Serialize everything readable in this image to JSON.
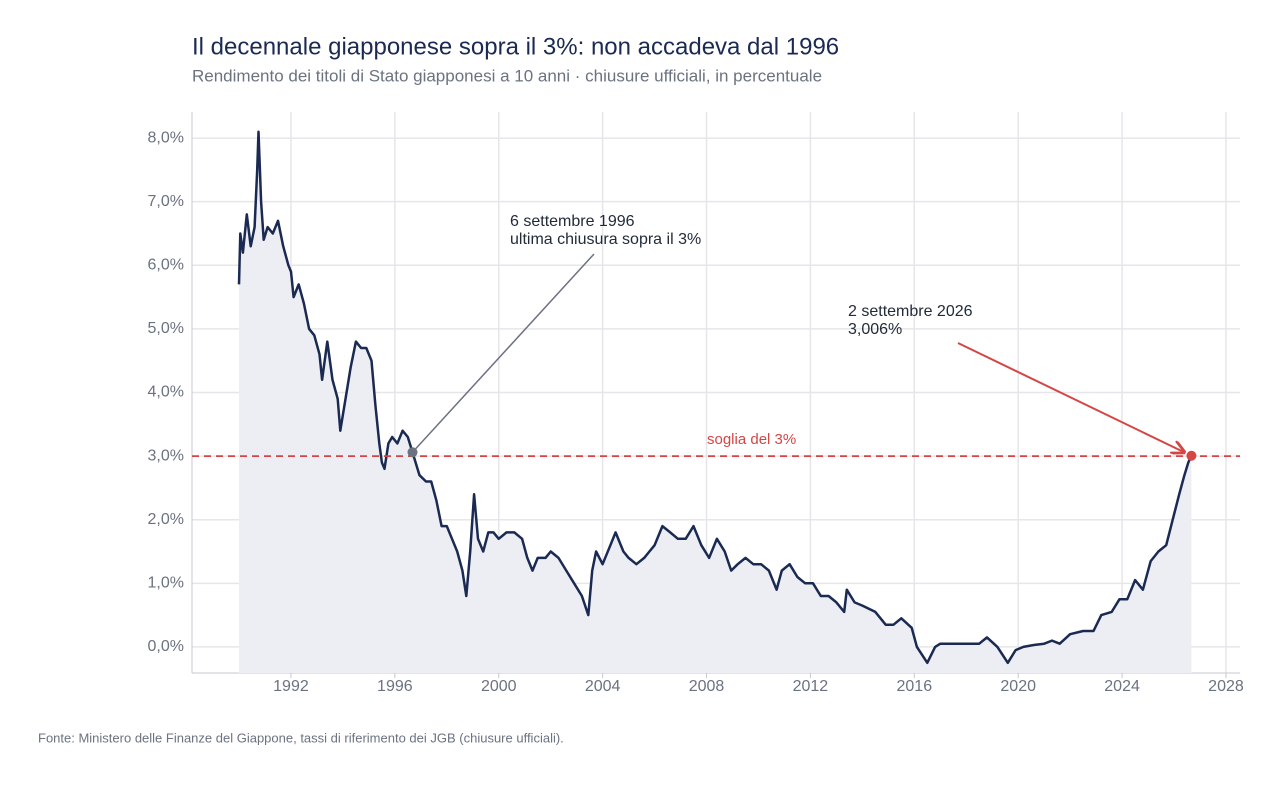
{
  "chart_data": {
    "type": "line",
    "title": "Il decennale giapponese sopra il 3%: non accadeva dal 1996",
    "subtitle": "Rendimento dei titoli di Stato giapponesi a 10 anni · chiusure ufficiali, in percentuale",
    "source": "Fonte: Ministero delle Finanze del Giappone, tassi di riferimento dei JGB (chiusure ufficiali).",
    "xlim": [
      1988.19,
      2028.54
    ],
    "ylim": [
      -0.41,
      8.41
    ],
    "xticks": [
      1992,
      1996,
      2000,
      2004,
      2008,
      2012,
      2016,
      2020,
      2024,
      2028
    ],
    "yticks": [
      {
        "value": 0,
        "label": "0,0%"
      },
      {
        "value": 1,
        "label": "1,0%"
      },
      {
        "value": 2,
        "label": "2,0%"
      },
      {
        "value": 3,
        "label": "3,0%"
      },
      {
        "value": 4,
        "label": "4,0%"
      },
      {
        "value": 5,
        "label": "5,0%"
      },
      {
        "value": 6,
        "label": "6,0%"
      },
      {
        "value": 7,
        "label": "7,0%"
      },
      {
        "value": 8,
        "label": "8,0%"
      }
    ],
    "grid": true,
    "x": [
      1990.0,
      1990.05,
      1990.15,
      1990.3,
      1990.45,
      1990.6,
      1990.7,
      1990.75,
      1990.85,
      1990.95,
      1991.1,
      1991.3,
      1991.5,
      1991.7,
      1991.9,
      1992.0,
      1992.1,
      1992.3,
      1992.5,
      1992.7,
      1992.9,
      1993.1,
      1993.2,
      1993.4,
      1993.6,
      1993.8,
      1993.9,
      1994.1,
      1994.3,
      1994.5,
      1994.7,
      1994.9,
      1995.1,
      1995.25,
      1995.4,
      1995.5,
      1995.6,
      1995.75,
      1995.9,
      1996.1,
      1996.3,
      1996.5,
      1996.68,
      1996.8,
      1996.95,
      1997.2,
      1997.4,
      1997.6,
      1997.8,
      1998.0,
      1998.2,
      1998.4,
      1998.6,
      1998.75,
      1998.9,
      1999.05,
      1999.2,
      1999.4,
      1999.6,
      1999.8,
      2000.0,
      2000.3,
      2000.6,
      2000.9,
      2001.1,
      2001.3,
      2001.5,
      2001.8,
      2002.0,
      2002.3,
      2002.6,
      2002.9,
      2003.2,
      2003.45,
      2003.6,
      2003.75,
      2004.0,
      2004.3,
      2004.5,
      2004.8,
      2005.0,
      2005.3,
      2005.6,
      2005.8,
      2006.0,
      2006.3,
      2006.6,
      2006.9,
      2007.2,
      2007.5,
      2007.8,
      2008.1,
      2008.4,
      2008.7,
      2008.95,
      2009.2,
      2009.5,
      2009.8,
      2010.1,
      2010.4,
      2010.7,
      2010.9,
      2011.2,
      2011.5,
      2011.8,
      2012.1,
      2012.4,
      2012.7,
      2013.0,
      2013.3,
      2013.4,
      2013.7,
      2014.0,
      2014.5,
      2014.9,
      2015.2,
      2015.5,
      2015.9,
      2016.1,
      2016.5,
      2016.8,
      2017.0,
      2017.5,
      2018.0,
      2018.5,
      2018.8,
      2019.2,
      2019.6,
      2019.9,
      2020.2,
      2020.6,
      2021.0,
      2021.3,
      2021.6,
      2022.0,
      2022.5,
      2022.9,
      2023.2,
      2023.6,
      2023.9,
      2024.2,
      2024.5,
      2024.8,
      2025.1,
      2025.4,
      2025.7,
      2025.95,
      2026.2,
      2026.4,
      2026.55,
      2026.67
    ],
    "series": [
      {
        "color": "#1b2a52",
        "fill_color": "#eceef3",
        "values": [
          5.7,
          6.5,
          6.2,
          6.8,
          6.3,
          6.6,
          7.5,
          8.1,
          7.0,
          6.4,
          6.6,
          6.5,
          6.7,
          6.3,
          6.0,
          5.9,
          5.5,
          5.7,
          5.4,
          5.0,
          4.9,
          4.6,
          4.2,
          4.8,
          4.2,
          3.9,
          3.4,
          3.9,
          4.4,
          4.8,
          4.7,
          4.7,
          4.5,
          3.8,
          3.2,
          2.9,
          2.8,
          3.2,
          3.3,
          3.2,
          3.4,
          3.3,
          3.06,
          2.9,
          2.7,
          2.6,
          2.6,
          2.3,
          1.9,
          1.9,
          1.7,
          1.5,
          1.2,
          0.8,
          1.5,
          2.4,
          1.7,
          1.5,
          1.8,
          1.8,
          1.7,
          1.8,
          1.8,
          1.7,
          1.4,
          1.2,
          1.4,
          1.4,
          1.5,
          1.4,
          1.2,
          1.0,
          0.8,
          0.5,
          1.2,
          1.5,
          1.3,
          1.6,
          1.8,
          1.5,
          1.4,
          1.3,
          1.4,
          1.5,
          1.6,
          1.9,
          1.8,
          1.7,
          1.7,
          1.9,
          1.6,
          1.4,
          1.7,
          1.5,
          1.2,
          1.3,
          1.4,
          1.3,
          1.3,
          1.2,
          0.9,
          1.2,
          1.3,
          1.1,
          1.0,
          1.0,
          0.8,
          0.8,
          0.7,
          0.55,
          0.9,
          0.7,
          0.65,
          0.55,
          0.35,
          0.35,
          0.45,
          0.3,
          0.0,
          -0.25,
          0.0,
          0.05,
          0.05,
          0.05,
          0.05,
          0.15,
          0.0,
          -0.25,
          -0.05,
          0.0,
          0.03,
          0.05,
          0.1,
          0.05,
          0.2,
          0.25,
          0.25,
          0.5,
          0.55,
          0.75,
          0.75,
          1.05,
          0.9,
          1.35,
          1.5,
          1.6,
          2.0,
          2.4,
          2.7,
          2.9,
          3.006
        ]
      }
    ],
    "threshold": {
      "value": 3,
      "label": "soglia del 3%",
      "color": "#d64545"
    },
    "annotations": [
      {
        "lines": [
          "6 settembre 1996",
          "ultima chiusura sopra il 3%"
        ],
        "x": 1996.68,
        "y": 3.06,
        "color": "#6b7280"
      },
      {
        "lines": [
          "2 settembre 2026",
          "3,006%"
        ],
        "x": 2026.67,
        "y": 3.006,
        "color": "#d64545"
      }
    ]
  }
}
